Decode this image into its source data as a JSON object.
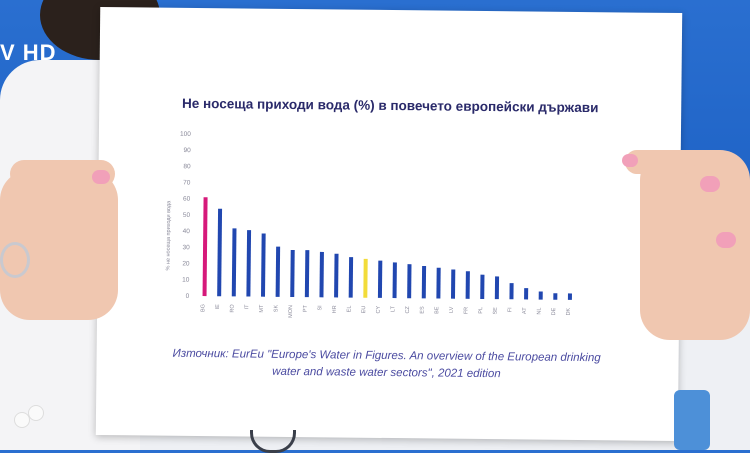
{
  "channel": {
    "logo": "V HD"
  },
  "paper": {
    "title": "Не носеща приходи вода (%) в повечето европейски държави",
    "source_line1": "Източник: EurEu \"Europe's Water in Figures. An overview of the European drinking",
    "source_line2": "water and waste water sectors\", 2021 edition"
  },
  "chart_data": {
    "type": "bar",
    "ylim": [
      0,
      100
    ],
    "yticks": [
      0,
      10,
      20,
      30,
      40,
      50,
      60,
      70,
      80,
      90,
      100
    ],
    "ylabel": "% не носеща приходи вода",
    "categories": [
      "BG",
      "IE",
      "RO",
      "IT",
      "MT",
      "SK",
      "MON",
      "PT",
      "SI",
      "HR",
      "EL",
      "EU",
      "CY",
      "LT",
      "CZ",
      "ES",
      "BE",
      "LV",
      "FR",
      "PL",
      "SE",
      "FI",
      "AT",
      "NL",
      "DE",
      "DK"
    ],
    "values": [
      61,
      54,
      42,
      41,
      39,
      31,
      29,
      29,
      28,
      27,
      25,
      24,
      23,
      22,
      21,
      20,
      19,
      18,
      17,
      15,
      14,
      10,
      7,
      5,
      4,
      4
    ],
    "colors": {
      "default": "#2147b0",
      "highlight_bg": "#d6197a",
      "highlight_eu": "#f2dc3a",
      "tick_text": "#8a8a9a",
      "axis": "#cfcfd8"
    },
    "highlight": {
      "BG": "highlight_bg",
      "EU": "highlight_eu"
    },
    "grid": false,
    "legend": "none"
  }
}
